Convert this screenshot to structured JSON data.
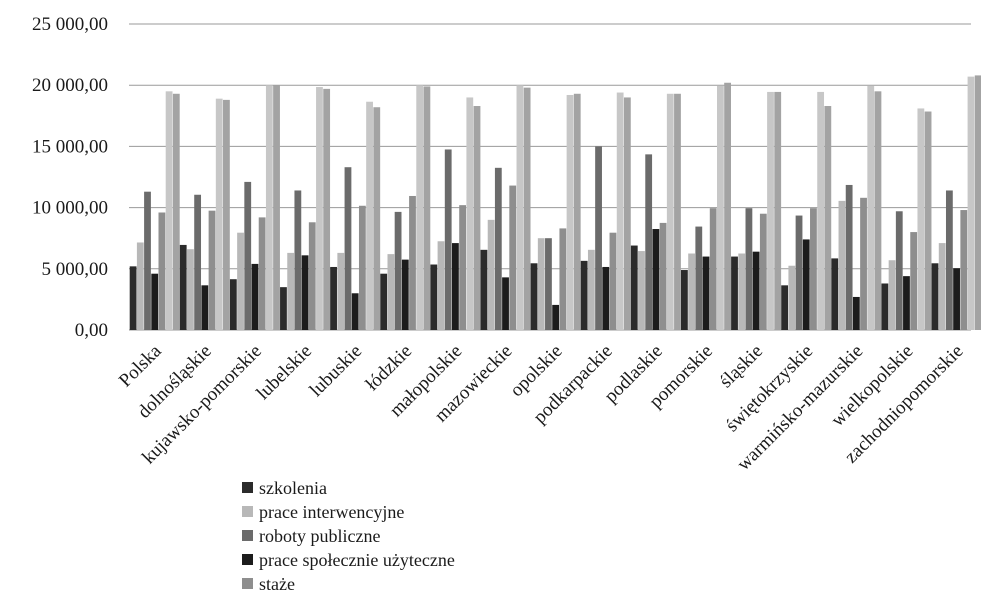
{
  "chart_data": {
    "type": "bar",
    "ylim": [
      0,
      25000
    ],
    "ytick_step": 5000,
    "yticks": [
      "0,00",
      "5 000,00",
      "10 000,00",
      "15 000,00",
      "20 000,00",
      "25 000,00"
    ],
    "grid": true,
    "legend_position": "bottom-left",
    "categories": [
      "Polska",
      "dolnośląskie",
      "kujawsko-pomorskie",
      "lubelskie",
      "lubuskie",
      "łódzkie",
      "małopolskie",
      "mazowieckie",
      "opolskie",
      "podkarpackie",
      "podlaskie",
      "pomorskie",
      "śląskie",
      "świętokrzyskie",
      "warmińsko-mazurskie",
      "wielkopolskie",
      "zachodniopomorskie"
    ],
    "series": [
      {
        "name": "szkolenia",
        "color": "#2b2b2b",
        "values": [
          5200,
          6950,
          4150,
          3500,
          5150,
          4600,
          5350,
          6550,
          5450,
          5650,
          6900,
          4900,
          6000,
          3650,
          5850,
          3800,
          5450
        ]
      },
      {
        "name": "prace interwencyjne",
        "color": "#b8b8b8",
        "values": [
          7150,
          6600,
          7950,
          6300,
          6300,
          6200,
          7250,
          9000,
          7500,
          6550,
          6450,
          6250,
          6250,
          5250,
          10550,
          5700,
          7100
        ]
      },
      {
        "name": "roboty publiczne",
        "color": "#6b6b6b",
        "values": [
          11300,
          11050,
          12100,
          11400,
          13300,
          9650,
          14750,
          13250,
          7500,
          15000,
          14350,
          8450,
          9950,
          9350,
          11850,
          9700,
          11400
        ]
      },
      {
        "name": "prace społecznie użyteczne",
        "color": "#1c1c1c",
        "values": [
          4600,
          3650,
          5400,
          6100,
          3000,
          5750,
          7100,
          4300,
          2050,
          5150,
          8250,
          6000,
          6400,
          7400,
          2700,
          4400,
          5050
        ]
      },
      {
        "name": "staże",
        "color": "#8e8e8e",
        "values": [
          9600,
          9750,
          9200,
          8800,
          10150,
          10950,
          10200,
          11800,
          8300,
          7950,
          8750,
          9950,
          9500,
          9950,
          10800,
          8000,
          9800
        ]
      },
      {
        "name": "",
        "color": "#c7c7c7",
        "values": [
          19500,
          18900,
          20000,
          19850,
          18650,
          20000,
          19000,
          20000,
          19200,
          19400,
          19300,
          19950,
          19450,
          19450,
          19950,
          18100,
          20700
        ]
      },
      {
        "name": "",
        "color": "#a3a3a3",
        "values": [
          19300,
          18800,
          20000,
          19700,
          18200,
          19900,
          18300,
          19800,
          19300,
          19000,
          19300,
          20200,
          19450,
          18300,
          19500,
          17850,
          20800
        ]
      }
    ]
  }
}
